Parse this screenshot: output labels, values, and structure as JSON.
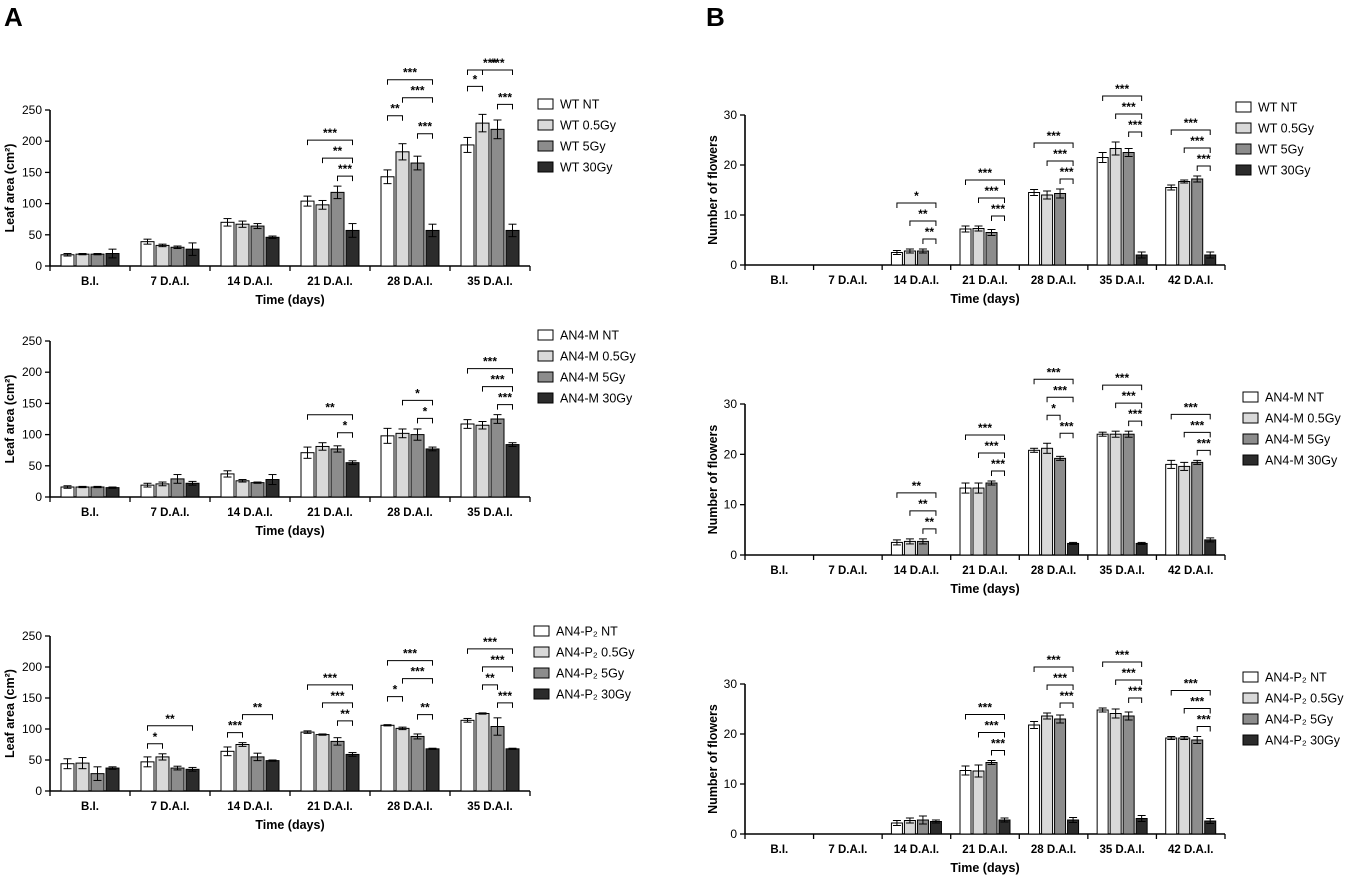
{
  "panel_labels": {
    "a": "A",
    "b": "B"
  },
  "colors": {
    "c0": "#ffffff",
    "c1": "#d9d9d9",
    "c2": "#8c8c8c",
    "c3": "#2b2b2b",
    "stroke": "#000000"
  },
  "chart_data": [
    {
      "id": "A1",
      "type": "bar",
      "ylabel": "Leaf area (cm²)",
      "xlabel": "Time (days)",
      "ylim": [
        0,
        250
      ],
      "yticks": [
        0,
        50,
        100,
        150,
        200,
        250
      ],
      "categories": [
        "B.I.",
        "7 D.A.I.",
        "14 D.A.I.",
        "21 D.A.I.",
        "28 D.A.I.",
        "35 D.A.I."
      ],
      "series": [
        {
          "name": "WT NT",
          "values": [
            18,
            39,
            70,
            104,
            143,
            194
          ],
          "errors": [
            2,
            4,
            6,
            8,
            11,
            12
          ]
        },
        {
          "name": "WT 0.5Gy",
          "values": [
            19,
            33,
            67,
            98,
            183,
            229
          ],
          "errors": [
            1,
            2,
            5,
            7,
            13,
            14
          ]
        },
        {
          "name": "WT 5Gy",
          "values": [
            19,
            30,
            64,
            118,
            165,
            219
          ],
          "errors": [
            1,
            2,
            4,
            10,
            11,
            15
          ]
        },
        {
          "name": "WT 30Gy",
          "values": [
            20,
            27,
            46,
            57,
            57,
            57
          ],
          "errors": [
            7,
            10,
            2,
            11,
            10,
            10
          ]
        }
      ],
      "significance": [
        {
          "category": 3,
          "from": 0,
          "to": 3,
          "label": "***"
        },
        {
          "category": 3,
          "from": 1,
          "to": 3,
          "label": "**"
        },
        {
          "category": 3,
          "from": 2,
          "to": 3,
          "label": "***"
        },
        {
          "category": 4,
          "from": 0,
          "to": 3,
          "label": "***"
        },
        {
          "category": 4,
          "from": 0,
          "to": 1,
          "label": "**"
        },
        {
          "category": 4,
          "from": 1,
          "to": 3,
          "label": "***"
        },
        {
          "category": 4,
          "from": 2,
          "to": 3,
          "label": "***"
        },
        {
          "category": 5,
          "from": 0,
          "to": 3,
          "label": "***"
        },
        {
          "category": 5,
          "from": 0,
          "to": 1,
          "label": "*"
        },
        {
          "category": 5,
          "from": 1,
          "to": 3,
          "label": "***"
        },
        {
          "category": 5,
          "from": 2,
          "to": 3,
          "label": "***"
        }
      ]
    },
    {
      "id": "A2",
      "type": "bar",
      "ylabel": "Leaf area (cm²)",
      "xlabel": "Time (days)",
      "ylim": [
        0,
        250
      ],
      "yticks": [
        0,
        50,
        100,
        150,
        200,
        250
      ],
      "categories": [
        "B.I.",
        "7 D.A.I.",
        "14 D.A.I.",
        "21 D.A.I.",
        "28 D.A.I.",
        "35 D.A.I."
      ],
      "series": [
        {
          "name": "AN4-M NT",
          "values": [
            16,
            19,
            37,
            71,
            98,
            117
          ],
          "errors": [
            2,
            3,
            5,
            9,
            12,
            7
          ]
        },
        {
          "name": "AN4-M 0.5Gy",
          "values": [
            16,
            21,
            26,
            81,
            102,
            115
          ],
          "errors": [
            1,
            3,
            2,
            6,
            7,
            6
          ]
        },
        {
          "name": "AN4-M 5Gy",
          "values": [
            16,
            29,
            23,
            77,
            100,
            125
          ],
          "errors": [
            1,
            7,
            1,
            5,
            9,
            7
          ]
        },
        {
          "name": "AN4-M 30Gy",
          "values": [
            15,
            22,
            28,
            55,
            77,
            84
          ],
          "errors": [
            1,
            3,
            8,
            3,
            3,
            3
          ]
        }
      ],
      "significance": [
        {
          "category": 3,
          "from": 0,
          "to": 3,
          "label": "**"
        },
        {
          "category": 3,
          "from": 2,
          "to": 3,
          "label": "*"
        },
        {
          "category": 4,
          "from": 1,
          "to": 3,
          "label": "*"
        },
        {
          "category": 4,
          "from": 2,
          "to": 3,
          "label": "*"
        },
        {
          "category": 5,
          "from": 0,
          "to": 3,
          "label": "***"
        },
        {
          "category": 5,
          "from": 1,
          "to": 3,
          "label": "***"
        },
        {
          "category": 5,
          "from": 2,
          "to": 3,
          "label": "***"
        }
      ]
    },
    {
      "id": "A3",
      "type": "bar",
      "ylabel": "Leaf area (cm²)",
      "xlabel": "Time (days)",
      "ylim": [
        0,
        250
      ],
      "yticks": [
        0,
        50,
        100,
        150,
        200,
        250
      ],
      "categories": [
        "B.I.",
        "7 D.A.I.",
        "14 D.A.I.",
        "21 D.A.I.",
        "28 D.A.I.",
        "35 D.A.I."
      ],
      "series": [
        {
          "name": "AN4-P₂ NT",
          "values": [
            44,
            47,
            64,
            95,
            106,
            114
          ],
          "errors": [
            8,
            8,
            7,
            2,
            1,
            3
          ]
        },
        {
          "name": "AN4-P₂ 0.5Gy",
          "values": [
            45,
            55,
            75,
            91,
            101,
            125
          ],
          "errors": [
            9,
            5,
            3,
            1,
            2,
            1
          ]
        },
        {
          "name": "AN4-P₂ 5Gy",
          "values": [
            28,
            37,
            55,
            80,
            88,
            104
          ],
          "errors": [
            11,
            3,
            6,
            6,
            4,
            14
          ]
        },
        {
          "name": "AN4-P₂ 30Gy",
          "values": [
            37,
            35,
            49,
            59,
            68,
            68
          ],
          "errors": [
            2,
            3,
            1,
            3,
            1,
            1
          ]
        }
      ],
      "significance": [
        {
          "category": 1,
          "from": 0,
          "to": 3,
          "label": "**"
        },
        {
          "category": 1,
          "from": 0,
          "to": 1,
          "label": "*"
        },
        {
          "category": 2,
          "from": 1,
          "to": 3,
          "label": "**"
        },
        {
          "category": 2,
          "from": 0,
          "to": 1,
          "label": "***"
        },
        {
          "category": 3,
          "from": 0,
          "to": 3,
          "label": "***"
        },
        {
          "category": 3,
          "from": 1,
          "to": 3,
          "label": "***"
        },
        {
          "category": 3,
          "from": 2,
          "to": 3,
          "label": "**"
        },
        {
          "category": 4,
          "from": 0,
          "to": 3,
          "label": "***"
        },
        {
          "category": 4,
          "from": 1,
          "to": 3,
          "label": "***"
        },
        {
          "category": 4,
          "from": 0,
          "to": 1,
          "label": "*"
        },
        {
          "category": 4,
          "from": 2,
          "to": 3,
          "label": "**"
        },
        {
          "category": 5,
          "from": 0,
          "to": 3,
          "label": "***"
        },
        {
          "category": 5,
          "from": 1,
          "to": 2,
          "label": "**"
        },
        {
          "category": 5,
          "from": 1,
          "to": 3,
          "label": "***"
        },
        {
          "category": 5,
          "from": 2,
          "to": 3,
          "label": "***"
        }
      ]
    },
    {
      "id": "B1",
      "type": "bar",
      "ylabel": "Number of flowers",
      "xlabel": "Time (days)",
      "ylim": [
        0,
        30
      ],
      "yticks": [
        0,
        10,
        20,
        30
      ],
      "categories": [
        "B.I.",
        "7 D.A.I.",
        "14 D.A.I.",
        "21 D.A.I.",
        "28 D.A.I.",
        "35 D.A.I.",
        "42 D.A.I."
      ],
      "series": [
        {
          "name": "WT NT",
          "values": [
            0,
            0,
            2.5,
            7.2,
            14.5,
            21.5,
            15.5
          ],
          "errors": [
            0,
            0,
            0.4,
            0.6,
            0.6,
            1.0,
            0.5
          ]
        },
        {
          "name": "WT 0.5Gy",
          "values": [
            0,
            0,
            2.8,
            7.3,
            14.0,
            23.3,
            16.7
          ],
          "errors": [
            0,
            0,
            0.4,
            0.5,
            0.8,
            1.3,
            0.3
          ]
        },
        {
          "name": "WT 5Gy",
          "values": [
            0,
            0,
            2.8,
            6.5,
            14.3,
            22.5,
            17.2
          ],
          "errors": [
            0,
            0,
            0.4,
            0.6,
            0.9,
            0.8,
            0.6
          ]
        },
        {
          "name": "WT 30Gy",
          "values": [
            0,
            0,
            0,
            0,
            0,
            2.0,
            2.0
          ],
          "errors": [
            0,
            0,
            0,
            0,
            0,
            0.6,
            0.6
          ]
        }
      ],
      "significance": [
        {
          "category": 2,
          "from": 0,
          "to": 3,
          "label": "*"
        },
        {
          "category": 2,
          "from": 1,
          "to": 3,
          "label": "**"
        },
        {
          "category": 2,
          "from": 2,
          "to": 3,
          "label": "**"
        },
        {
          "category": 3,
          "from": 0,
          "to": 3,
          "label": "***"
        },
        {
          "category": 3,
          "from": 1,
          "to": 3,
          "label": "***"
        },
        {
          "category": 3,
          "from": 2,
          "to": 3,
          "label": "***"
        },
        {
          "category": 4,
          "from": 0,
          "to": 3,
          "label": "***"
        },
        {
          "category": 4,
          "from": 1,
          "to": 3,
          "label": "***"
        },
        {
          "category": 4,
          "from": 2,
          "to": 3,
          "label": "***"
        },
        {
          "category": 5,
          "from": 0,
          "to": 3,
          "label": "***"
        },
        {
          "category": 5,
          "from": 1,
          "to": 3,
          "label": "***"
        },
        {
          "category": 5,
          "from": 2,
          "to": 3,
          "label": "***"
        },
        {
          "category": 6,
          "from": 0,
          "to": 3,
          "label": "***"
        },
        {
          "category": 6,
          "from": 1,
          "to": 3,
          "label": "***"
        },
        {
          "category": 6,
          "from": 2,
          "to": 3,
          "label": "***"
        }
      ]
    },
    {
      "id": "B2",
      "type": "bar",
      "ylabel": "Number of flowers",
      "xlabel": "Time (days)",
      "ylim": [
        0,
        30
      ],
      "yticks": [
        0,
        10,
        20,
        30
      ],
      "categories": [
        "B.I.",
        "7 D.A.I.",
        "14 D.A.I.",
        "21 D.A.I.",
        "28 D.A.I.",
        "35 D.A.I.",
        "42 D.A.I."
      ],
      "series": [
        {
          "name": "AN4-M NT",
          "values": [
            0,
            0,
            2.5,
            13.3,
            20.8,
            24.0,
            18.0
          ],
          "errors": [
            0,
            0,
            0.5,
            1.0,
            0.4,
            0.4,
            0.8
          ]
        },
        {
          "name": "AN4-M 0.5Gy",
          "values": [
            0,
            0,
            2.7,
            13.3,
            21.2,
            24.0,
            17.6
          ],
          "errors": [
            0,
            0,
            0.5,
            1.0,
            1.0,
            0.6,
            0.8
          ]
        },
        {
          "name": "AN4-M 5Gy",
          "values": [
            0,
            0,
            2.7,
            14.3,
            19.2,
            24.0,
            18.4
          ],
          "errors": [
            0,
            0,
            0.5,
            0.4,
            0.4,
            0.6,
            0.4
          ]
        },
        {
          "name": "AN4-M 30Gy",
          "values": [
            0,
            0,
            0,
            0,
            2.3,
            2.3,
            3.0
          ],
          "errors": [
            0,
            0,
            0,
            0,
            0.2,
            0.2,
            0.4
          ]
        }
      ],
      "significance": [
        {
          "category": 2,
          "from": 0,
          "to": 3,
          "label": "**"
        },
        {
          "category": 2,
          "from": 1,
          "to": 3,
          "label": "**"
        },
        {
          "category": 2,
          "from": 2,
          "to": 3,
          "label": "**"
        },
        {
          "category": 3,
          "from": 0,
          "to": 3,
          "label": "***"
        },
        {
          "category": 3,
          "from": 1,
          "to": 3,
          "label": "***"
        },
        {
          "category": 3,
          "from": 2,
          "to": 3,
          "label": "***"
        },
        {
          "category": 4,
          "from": 0,
          "to": 3,
          "label": "***"
        },
        {
          "category": 4,
          "from": 1,
          "to": 3,
          "label": "***"
        },
        {
          "category": 4,
          "from": 1,
          "to": 2,
          "label": "*"
        },
        {
          "category": 4,
          "from": 2,
          "to": 3,
          "label": "***"
        },
        {
          "category": 5,
          "from": 0,
          "to": 3,
          "label": "***"
        },
        {
          "category": 5,
          "from": 1,
          "to": 3,
          "label": "***"
        },
        {
          "category": 5,
          "from": 2,
          "to": 3,
          "label": "***"
        },
        {
          "category": 6,
          "from": 0,
          "to": 3,
          "label": "***"
        },
        {
          "category": 6,
          "from": 1,
          "to": 3,
          "label": "***"
        },
        {
          "category": 6,
          "from": 2,
          "to": 3,
          "label": "***"
        }
      ]
    },
    {
      "id": "B3",
      "type": "bar",
      "ylabel": "Number of flowers",
      "xlabel": "Time (days)",
      "ylim": [
        0,
        30
      ],
      "yticks": [
        0,
        10,
        20,
        30
      ],
      "categories": [
        "B.I.",
        "7 D.A.I.",
        "14 D.A.I.",
        "21 D.A.I.",
        "28 D.A.I.",
        "35 D.A.I.",
        "42 D.A.I."
      ],
      "series": [
        {
          "name": "AN4-P₂ NT",
          "values": [
            0,
            0,
            2.2,
            12.7,
            21.8,
            24.8,
            19.2
          ],
          "errors": [
            0,
            0,
            0.5,
            0.9,
            0.7,
            0.4,
            0.3
          ]
        },
        {
          "name": "AN4-P₂ 0.5Gy",
          "values": [
            0,
            0,
            2.7,
            12.6,
            23.6,
            24.1,
            19.2
          ],
          "errors": [
            0,
            0,
            0.5,
            1.2,
            0.6,
            0.9,
            0.3
          ]
        },
        {
          "name": "AN4-P₂ 5Gy",
          "values": [
            0,
            0,
            2.8,
            14.3,
            23.0,
            23.6,
            18.8
          ],
          "errors": [
            0,
            0,
            0.8,
            0.4,
            0.8,
            0.8,
            0.7
          ]
        },
        {
          "name": "AN4-P₂ 30Gy",
          "values": [
            0,
            0,
            2.5,
            2.8,
            2.8,
            3.1,
            2.6
          ],
          "errors": [
            0,
            0,
            0.3,
            0.4,
            0.5,
            0.6,
            0.5
          ]
        }
      ],
      "significance": [
        {
          "category": 3,
          "from": 0,
          "to": 3,
          "label": "***"
        },
        {
          "category": 3,
          "from": 1,
          "to": 3,
          "label": "***"
        },
        {
          "category": 3,
          "from": 2,
          "to": 3,
          "label": "***"
        },
        {
          "category": 4,
          "from": 0,
          "to": 3,
          "label": "***"
        },
        {
          "category": 4,
          "from": 1,
          "to": 3,
          "label": "***"
        },
        {
          "category": 4,
          "from": 2,
          "to": 3,
          "label": "***"
        },
        {
          "category": 5,
          "from": 0,
          "to": 3,
          "label": "***"
        },
        {
          "category": 5,
          "from": 1,
          "to": 3,
          "label": "***"
        },
        {
          "category": 5,
          "from": 2,
          "to": 3,
          "label": "***"
        },
        {
          "category": 6,
          "from": 0,
          "to": 3,
          "label": "***"
        },
        {
          "category": 6,
          "from": 1,
          "to": 3,
          "label": "***"
        },
        {
          "category": 6,
          "from": 2,
          "to": 3,
          "label": "***"
        }
      ]
    }
  ]
}
